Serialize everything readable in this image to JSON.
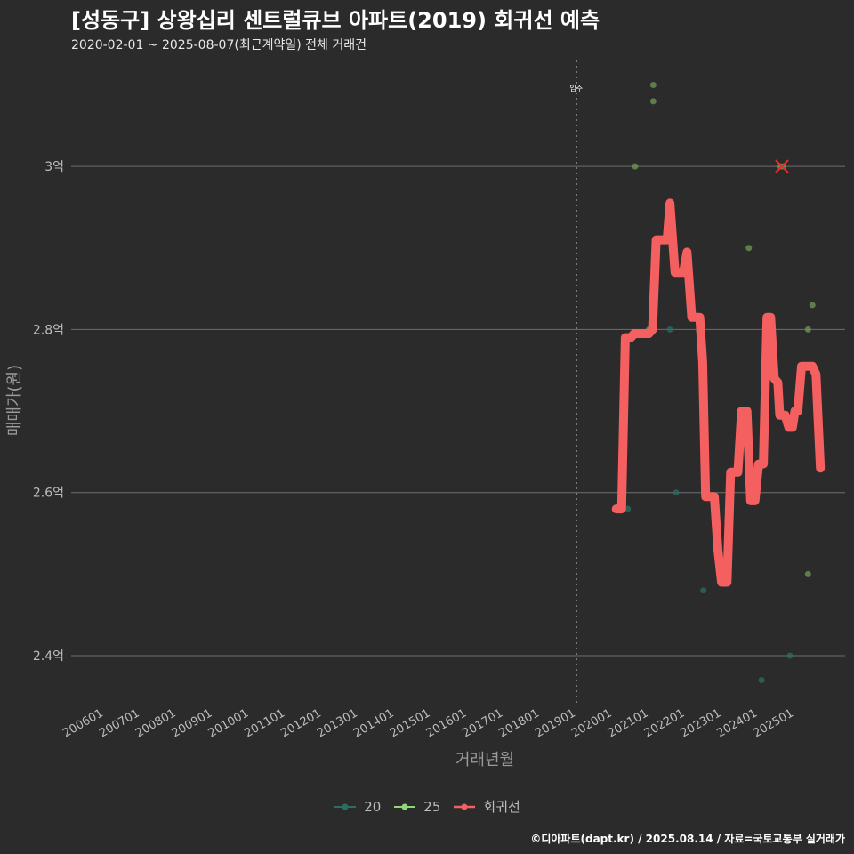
{
  "title": "[성동구] 상왕십리 센트럴큐브 아파트(2019) 회귀선 예측",
  "subtitle": "2020-02-01 ~ 2025-08-07(최근계약일) 전체 거래건",
  "caption": "©디아파트(dapt.kr) / 2025.08.14 / 자료=국토교통부 실거래가",
  "colors": {
    "background": "#2b2b2b",
    "grid": "#6e6e6e",
    "series_20": "#2a6f62",
    "series_25": "#6f9a56",
    "regression": "#f46060",
    "marker": "#e03030"
  },
  "chart_data": {
    "type": "line",
    "xlabel": "거래년월",
    "ylabel": "매매가(원)",
    "x_unit": "year",
    "xlim": [
      2005.1,
      2026.4
    ],
    "ylim": [
      2.34,
      3.13
    ],
    "x_ticks": [
      {
        "label": "200601",
        "value": 2006.0
      },
      {
        "label": "200701",
        "value": 2007.0
      },
      {
        "label": "200801",
        "value": 2008.0
      },
      {
        "label": "200901",
        "value": 2009.0
      },
      {
        "label": "201001",
        "value": 2010.0
      },
      {
        "label": "201101",
        "value": 2011.0
      },
      {
        "label": "201201",
        "value": 2012.0
      },
      {
        "label": "201301",
        "value": 2013.0
      },
      {
        "label": "201401",
        "value": 2014.0
      },
      {
        "label": "201501",
        "value": 2015.0
      },
      {
        "label": "201601",
        "value": 2016.0
      },
      {
        "label": "201701",
        "value": 2017.0
      },
      {
        "label": "201801",
        "value": 2018.0
      },
      {
        "label": "201901",
        "value": 2019.0
      },
      {
        "label": "202001",
        "value": 2020.0
      },
      {
        "label": "202101",
        "value": 2021.0
      },
      {
        "label": "202201",
        "value": 2022.0
      },
      {
        "label": "202301",
        "value": 2023.0
      },
      {
        "label": "202401",
        "value": 2024.0
      },
      {
        "label": "202501",
        "value": 2025.0
      }
    ],
    "y_ticks": [
      {
        "label": "2.4억",
        "value": 2.4
      },
      {
        "label": "2.6억",
        "value": 2.6
      },
      {
        "label": "2.8억",
        "value": 2.8
      },
      {
        "label": "3억",
        "value": 3.0
      }
    ],
    "vline": {
      "x": 2019.0,
      "label": "입주"
    },
    "series": [
      {
        "name": "20",
        "kind": "scatter",
        "points": [
          [
            2020.42,
            2.58
          ],
          [
            2021.58,
            2.8
          ],
          [
            2021.75,
            2.6
          ],
          [
            2022.5,
            2.48
          ],
          [
            2024.1,
            2.37
          ],
          [
            2024.88,
            2.4
          ]
        ]
      },
      {
        "name": "25",
        "kind": "scatter",
        "points": [
          [
            2020.62,
            3.0
          ],
          [
            2021.0,
            2.8
          ],
          [
            2021.12,
            3.1
          ],
          [
            2021.12,
            3.08
          ],
          [
            2023.75,
            2.9
          ],
          [
            2024.62,
            3.0
          ],
          [
            2024.7,
            3.0
          ],
          [
            2025.38,
            2.8
          ],
          [
            2025.38,
            2.5
          ],
          [
            2025.5,
            2.83
          ]
        ]
      },
      {
        "name": "회귀선",
        "kind": "line",
        "points": [
          [
            2020.1,
            2.58
          ],
          [
            2020.25,
            2.58
          ],
          [
            2020.35,
            2.79
          ],
          [
            2020.5,
            2.79
          ],
          [
            2020.6,
            2.795
          ],
          [
            2021.0,
            2.795
          ],
          [
            2021.1,
            2.8
          ],
          [
            2021.2,
            2.91
          ],
          [
            2021.5,
            2.91
          ],
          [
            2021.58,
            2.955
          ],
          [
            2021.72,
            2.87
          ],
          [
            2021.95,
            2.87
          ],
          [
            2022.05,
            2.895
          ],
          [
            2022.18,
            2.815
          ],
          [
            2022.4,
            2.815
          ],
          [
            2022.48,
            2.76
          ],
          [
            2022.56,
            2.595
          ],
          [
            2022.8,
            2.595
          ],
          [
            2022.9,
            2.53
          ],
          [
            2023.0,
            2.49
          ],
          [
            2023.15,
            2.49
          ],
          [
            2023.25,
            2.625
          ],
          [
            2023.45,
            2.625
          ],
          [
            2023.55,
            2.7
          ],
          [
            2023.7,
            2.7
          ],
          [
            2023.8,
            2.59
          ],
          [
            2023.92,
            2.59
          ],
          [
            2024.02,
            2.635
          ],
          [
            2024.15,
            2.635
          ],
          [
            2024.25,
            2.815
          ],
          [
            2024.35,
            2.815
          ],
          [
            2024.45,
            2.74
          ],
          [
            2024.55,
            2.735
          ],
          [
            2024.6,
            2.695
          ],
          [
            2024.75,
            2.695
          ],
          [
            2024.85,
            2.68
          ],
          [
            2024.95,
            2.68
          ],
          [
            2025.02,
            2.7
          ],
          [
            2025.1,
            2.7
          ],
          [
            2025.2,
            2.755
          ],
          [
            2025.5,
            2.755
          ],
          [
            2025.6,
            2.745
          ],
          [
            2025.72,
            2.63
          ]
        ]
      }
    ],
    "marker_x": {
      "x": 2024.66,
      "y": 3.0
    }
  }
}
